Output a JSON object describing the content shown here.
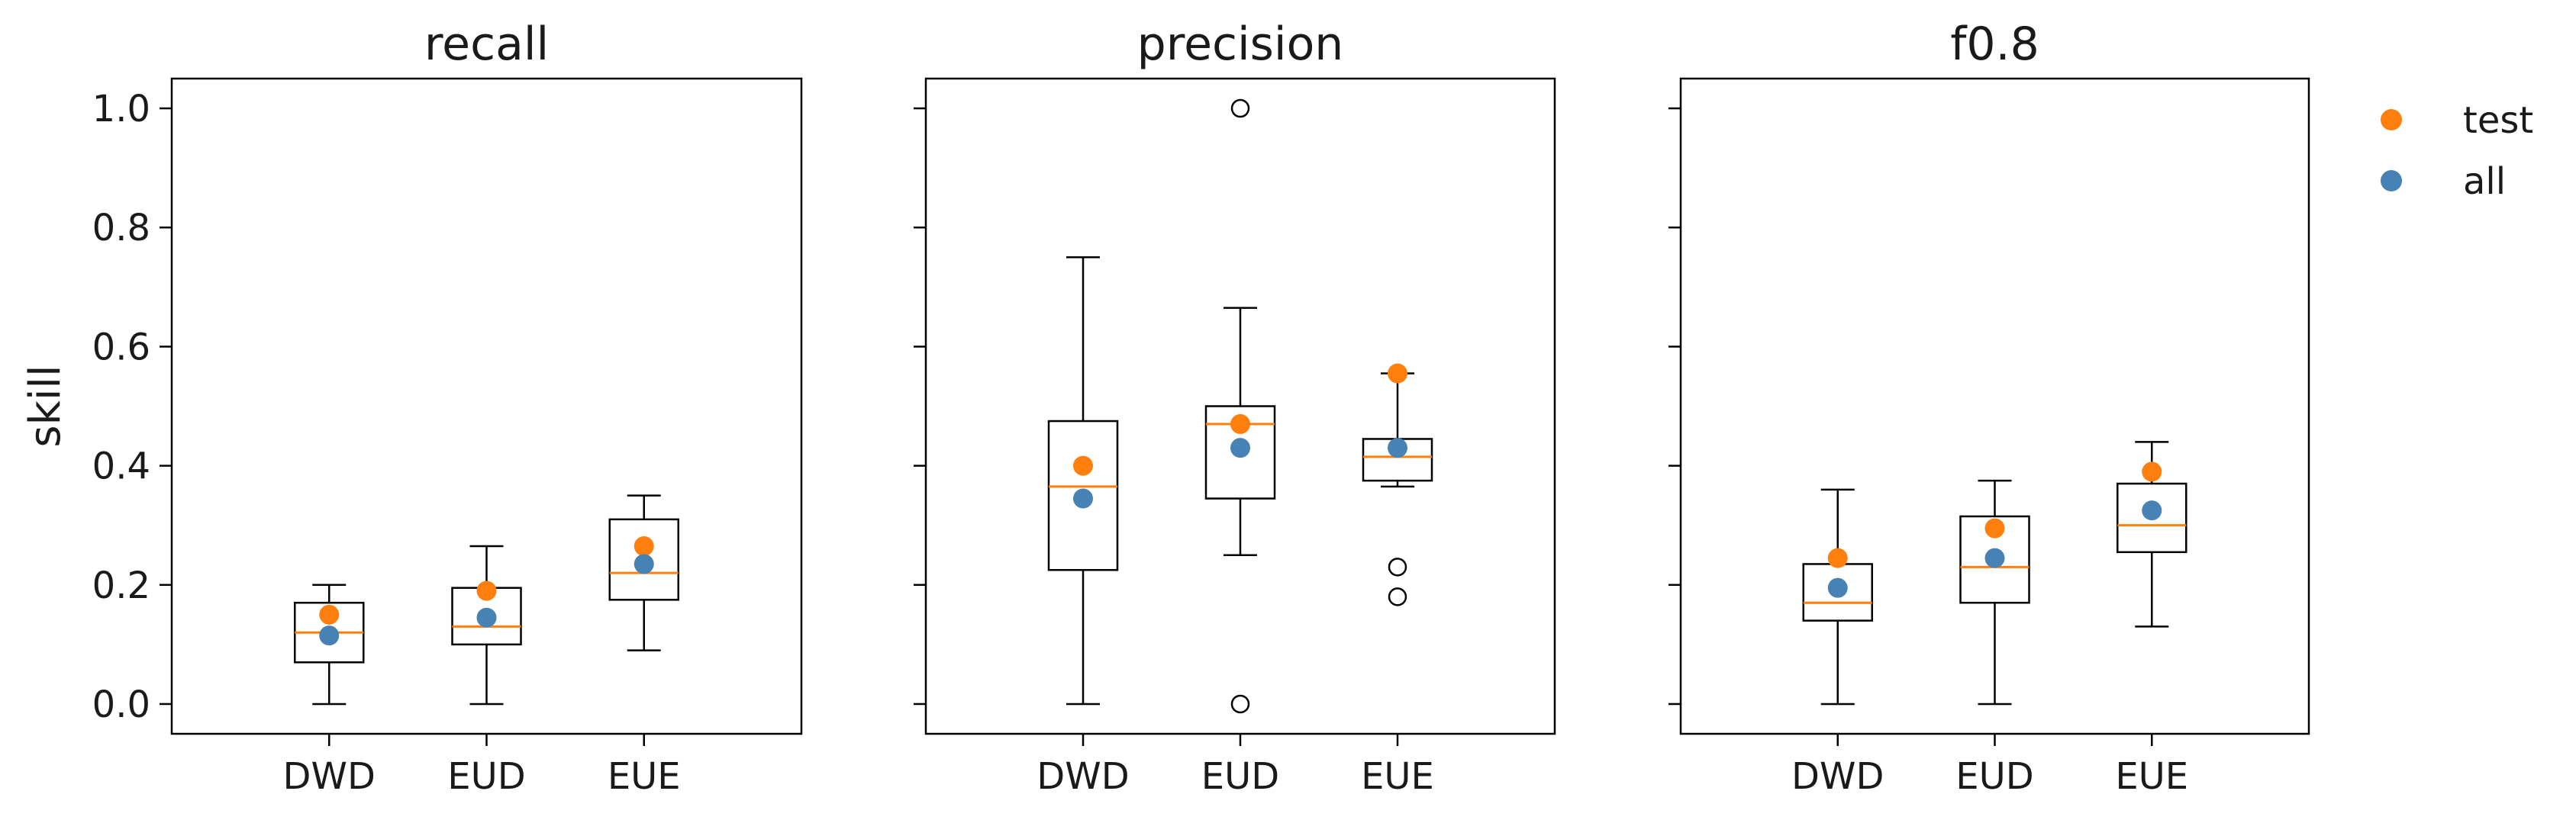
{
  "colors": {
    "test": "#ff7f0e",
    "all": "#4682b4",
    "median": "#ff7f0e",
    "box": "#000000"
  },
  "legend": {
    "placement": "outside-right-top",
    "items": [
      {
        "key": "test",
        "label": "test",
        "color": "#ff7f0e"
      },
      {
        "key": "all",
        "label": "all",
        "color": "#4682b4"
      }
    ]
  },
  "chart_data": [
    {
      "type": "box",
      "title": "recall",
      "ylabel": "skill",
      "ylim": [
        -0.05,
        1.05
      ],
      "yticks": [
        "0.0",
        "0.2",
        "0.4",
        "0.6",
        "0.8",
        "1.0"
      ],
      "categories": [
        "DWD",
        "EUD",
        "EUE"
      ],
      "boxes": [
        {
          "q1": 0.07,
          "median": 0.12,
          "q3": 0.17,
          "whisker_low": 0.0,
          "whisker_high": 0.2,
          "outliers": [],
          "test": 0.15,
          "all": 0.115
        },
        {
          "q1": 0.1,
          "median": 0.13,
          "q3": 0.195,
          "whisker_low": 0.0,
          "whisker_high": 0.265,
          "outliers": [],
          "test": 0.19,
          "all": 0.145
        },
        {
          "q1": 0.175,
          "median": 0.22,
          "q3": 0.31,
          "whisker_low": 0.09,
          "whisker_high": 0.35,
          "outliers": [],
          "test": 0.265,
          "all": 0.235
        }
      ]
    },
    {
      "type": "box",
      "title": "precision",
      "ylabel": "",
      "ylim": [
        -0.05,
        1.05
      ],
      "yticks": [
        "",
        "",
        "",
        "",
        "",
        ""
      ],
      "categories": [
        "DWD",
        "EUD",
        "EUE"
      ],
      "boxes": [
        {
          "q1": 0.225,
          "median": 0.365,
          "q3": 0.475,
          "whisker_low": 0.0,
          "whisker_high": 0.75,
          "outliers": [],
          "test": 0.4,
          "all": 0.345
        },
        {
          "q1": 0.345,
          "median": 0.47,
          "q3": 0.5,
          "whisker_low": 0.25,
          "whisker_high": 0.665,
          "outliers": [
            1.0,
            0.0
          ],
          "test": 0.47,
          "all": 0.43
        },
        {
          "q1": 0.375,
          "median": 0.415,
          "q3": 0.445,
          "whisker_low": 0.365,
          "whisker_high": 0.555,
          "outliers": [
            0.23,
            0.18
          ],
          "test": 0.555,
          "all": 0.43
        }
      ]
    },
    {
      "type": "box",
      "title": "f0.8",
      "ylabel": "",
      "ylim": [
        -0.05,
        1.05
      ],
      "yticks": [
        "",
        "",
        "",
        "",
        "",
        ""
      ],
      "categories": [
        "DWD",
        "EUD",
        "EUE"
      ],
      "boxes": [
        {
          "q1": 0.14,
          "median": 0.17,
          "q3": 0.235,
          "whisker_low": 0.0,
          "whisker_high": 0.36,
          "outliers": [],
          "test": 0.245,
          "all": 0.195
        },
        {
          "q1": 0.17,
          "median": 0.23,
          "q3": 0.315,
          "whisker_low": 0.0,
          "whisker_high": 0.375,
          "outliers": [],
          "test": 0.295,
          "all": 0.245
        },
        {
          "q1": 0.255,
          "median": 0.3,
          "q3": 0.37,
          "whisker_low": 0.13,
          "whisker_high": 0.44,
          "outliers": [],
          "test": 0.39,
          "all": 0.325
        }
      ]
    }
  ]
}
